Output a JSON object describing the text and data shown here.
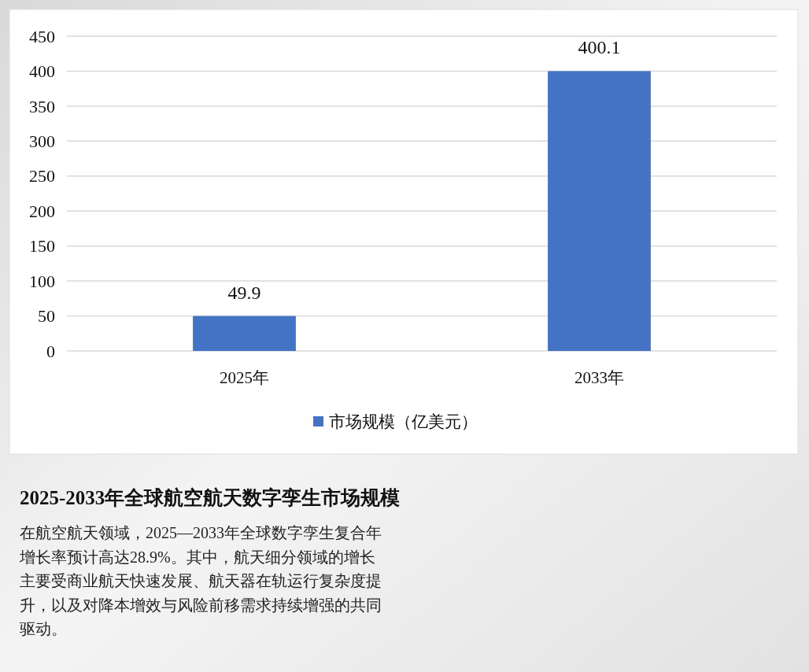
{
  "chart_data": {
    "type": "bar",
    "title": "2025-2033年全球航空航天数字孪生市场规模",
    "annotations": [
      "在航空航天领域，2025—2033年全球数字孪生复合年增长率预计高达28.9%。其中，航天细分领域的增长主要受商业航天快速发展、航天器在轨运行复杂度提升，以及对降本增效与风险前移需求持续增强的共同驱动。"
    ],
    "categories": [
      "2025年",
      "2033年"
    ],
    "series": [
      {
        "name": "市场规模（亿美元）",
        "color": "#4472c4",
        "values": [
          49.9,
          400.1
        ]
      }
    ],
    "ylim": [
      0,
      450
    ],
    "yticks": [
      0,
      50,
      100,
      150,
      200,
      250,
      300,
      350,
      400,
      450
    ],
    "grid": "y",
    "legend": "bottom",
    "data_labels": true
  }
}
